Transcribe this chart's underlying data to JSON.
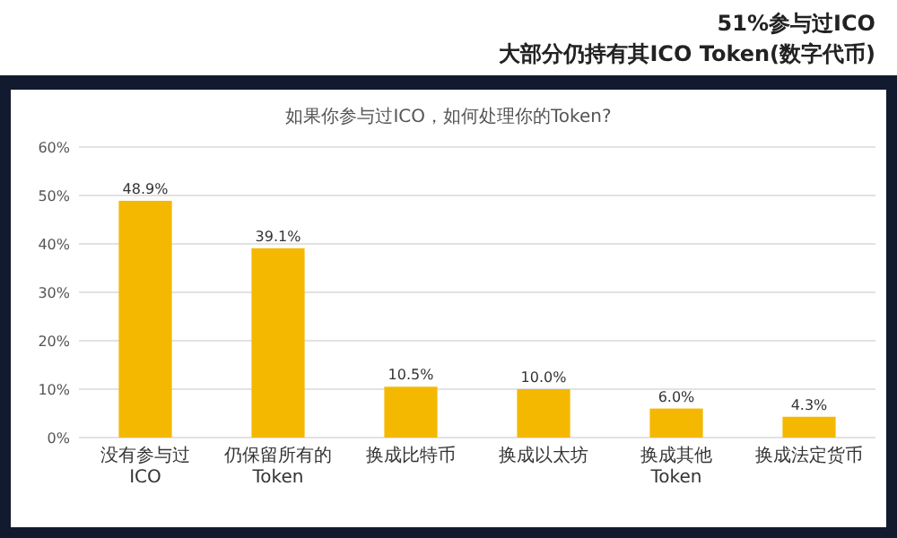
{
  "chart_data": {
    "type": "bar",
    "title": "51%参与过ICO",
    "subtitle": "大部分仍持有其ICO Token(数字代币)",
    "annotations": [
      "如果你参与过ICO，如何处理你的Token?"
    ],
    "categories": [
      "没有参与过ICO",
      "仍保留所有的Token",
      "换成比特币",
      "换成以太坊",
      "换成其他Token",
      "换成法定货币"
    ],
    "values": [
      48.9,
      39.1,
      10.5,
      10.0,
      6.0,
      4.3
    ],
    "value_labels": [
      "48.9%",
      "39.1%",
      "10.5%",
      "10.0%",
      "6.0%",
      "4.3%"
    ],
    "color": "#f5b800",
    "ylim": [
      0,
      60
    ],
    "yticks": [
      {
        "value": 0,
        "label": "0%"
      },
      {
        "value": 10,
        "label": "10%"
      },
      {
        "value": 20,
        "label": "20%"
      },
      {
        "value": 30,
        "label": "30%"
      },
      {
        "value": 40,
        "label": "40%"
      },
      {
        "value": 50,
        "label": "50%"
      },
      {
        "value": 60,
        "label": "60%"
      }
    ],
    "grid": "y"
  }
}
